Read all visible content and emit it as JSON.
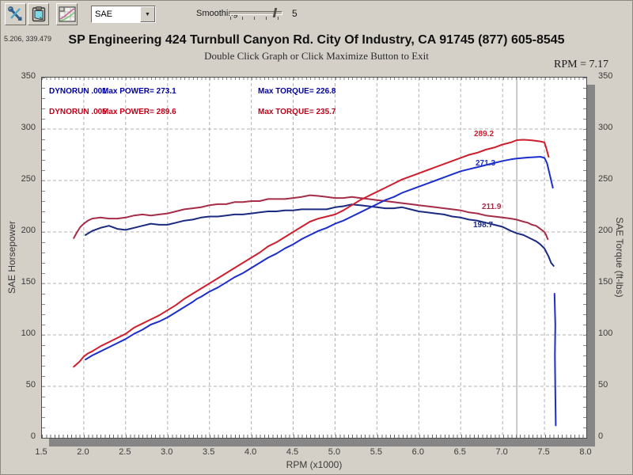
{
  "toolbar": {
    "dropdown_value": "SAE",
    "smoothing_label": "Smoothing",
    "smoothing_value": "5"
  },
  "header": {
    "cursor_coords": "5.206, 339.479",
    "title": "SP Engineering 424 Turnbull Canyon Rd. City Of Industry, CA 91745 (877) 605-8545",
    "subtitle": "Double Click Graph or Click Maximize Button to Exit",
    "rpm_readout": "RPM = 7.17"
  },
  "legend": {
    "rows": [
      {
        "run": "DYNORUN .001",
        "power": "Max POWER= 273.1",
        "torque": "Max TORQUE= 226.8",
        "color": "#0000a0"
      },
      {
        "run": "DYNORUN .005",
        "power": "Max POWER= 289.6",
        "torque": "Max TORQUE= 235.7",
        "color": "#c00018"
      }
    ]
  },
  "axes": {
    "left_title": "SAE Horsepower",
    "right_title": "SAE Torque (ft-lbs)",
    "x_title": "RPM (x1000)"
  },
  "chart_data": {
    "type": "line",
    "title": "SP Engineering 424 Turnbull Canyon Rd. City Of Industry, CA 91745 (877) 605-8545",
    "xlabel": "RPM (x1000)",
    "ylabel_left": "SAE Horsepower",
    "ylabel_right": "SAE Torque (ft-lbs)",
    "x_range": [
      1.5,
      8.0
    ],
    "y_range": [
      0,
      350
    ],
    "x_ticks": [
      "1.5",
      "2.0",
      "2.5",
      "3.0",
      "3.5",
      "4.0",
      "4.5",
      "5.0",
      "5.5",
      "6.0",
      "6.5",
      "7.0",
      "7.5",
      "8.0"
    ],
    "y_ticks": [
      "0",
      "50",
      "100",
      "150",
      "200",
      "250",
      "300",
      "350"
    ],
    "grid": "dashed",
    "legend_position": "top-left-inside",
    "cursor_rpm": 7.17,
    "cursor_labels": [
      {
        "text": "289.2",
        "x": 546,
        "y": 66,
        "color": "#cf1f2e"
      },
      {
        "text": "271.3",
        "x": 548,
        "y": 103,
        "color": "#1c2ecc"
      },
      {
        "text": "211.9",
        "x": 556,
        "y": 158,
        "color": "#a62c48"
      },
      {
        "text": "198.7",
        "x": 545,
        "y": 181,
        "color": "#1a2a80"
      }
    ],
    "series": [
      {
        "name": "dynorun-005-torque",
        "run": "DYNORUN .005",
        "quantity": "torque",
        "max": 235.7,
        "color": "#a62c48",
        "points": [
          [
            1.88,
            194
          ],
          [
            1.92,
            200
          ],
          [
            1.96,
            205
          ],
          [
            2.0,
            208
          ],
          [
            2.05,
            211
          ],
          [
            2.1,
            213
          ],
          [
            2.2,
            214
          ],
          [
            2.3,
            213
          ],
          [
            2.4,
            213
          ],
          [
            2.5,
            214
          ],
          [
            2.6,
            216
          ],
          [
            2.7,
            217
          ],
          [
            2.8,
            216
          ],
          [
            2.9,
            217
          ],
          [
            3.0,
            218
          ],
          [
            3.1,
            220
          ],
          [
            3.2,
            222
          ],
          [
            3.3,
            223
          ],
          [
            3.4,
            224
          ],
          [
            3.5,
            226
          ],
          [
            3.6,
            227
          ],
          [
            3.7,
            227
          ],
          [
            3.8,
            229
          ],
          [
            3.9,
            229
          ],
          [
            4.0,
            230
          ],
          [
            4.1,
            230
          ],
          [
            4.2,
            232
          ],
          [
            4.3,
            232
          ],
          [
            4.4,
            232
          ],
          [
            4.5,
            233
          ],
          [
            4.6,
            234
          ],
          [
            4.7,
            235.7
          ],
          [
            4.8,
            235
          ],
          [
            4.9,
            234
          ],
          [
            5.0,
            233
          ],
          [
            5.1,
            233
          ],
          [
            5.2,
            234
          ],
          [
            5.3,
            233
          ],
          [
            5.4,
            232
          ],
          [
            5.5,
            231
          ],
          [
            5.6,
            230
          ],
          [
            5.7,
            229
          ],
          [
            5.8,
            228
          ],
          [
            5.9,
            227
          ],
          [
            6.0,
            226
          ],
          [
            6.1,
            225
          ],
          [
            6.2,
            224
          ],
          [
            6.3,
            223
          ],
          [
            6.4,
            222
          ],
          [
            6.5,
            221
          ],
          [
            6.6,
            219
          ],
          [
            6.7,
            218
          ],
          [
            6.8,
            216
          ],
          [
            6.9,
            215
          ],
          [
            7.0,
            214
          ],
          [
            7.1,
            213
          ],
          [
            7.17,
            211.9
          ],
          [
            7.25,
            210
          ],
          [
            7.3,
            209
          ],
          [
            7.35,
            207
          ],
          [
            7.4,
            206
          ],
          [
            7.45,
            203
          ],
          [
            7.5,
            200
          ],
          [
            7.52,
            197
          ],
          [
            7.54,
            193
          ]
        ]
      },
      {
        "name": "dynorun-001-torque",
        "run": "DYNORUN .001",
        "quantity": "torque",
        "max": 226.8,
        "color": "#1a2a80",
        "points": [
          [
            2.02,
            197
          ],
          [
            2.1,
            201
          ],
          [
            2.2,
            204
          ],
          [
            2.3,
            206
          ],
          [
            2.4,
            203
          ],
          [
            2.5,
            202
          ],
          [
            2.6,
            204
          ],
          [
            2.7,
            206
          ],
          [
            2.8,
            208
          ],
          [
            2.9,
            207
          ],
          [
            3.0,
            207
          ],
          [
            3.1,
            209
          ],
          [
            3.2,
            211
          ],
          [
            3.3,
            212
          ],
          [
            3.4,
            214
          ],
          [
            3.5,
            215
          ],
          [
            3.6,
            215
          ],
          [
            3.7,
            216
          ],
          [
            3.8,
            217
          ],
          [
            3.9,
            217
          ],
          [
            4.0,
            218
          ],
          [
            4.1,
            219
          ],
          [
            4.2,
            220
          ],
          [
            4.3,
            220
          ],
          [
            4.4,
            221
          ],
          [
            4.5,
            221
          ],
          [
            4.6,
            222
          ],
          [
            4.7,
            222
          ],
          [
            4.8,
            222
          ],
          [
            4.9,
            222
          ],
          [
            5.0,
            224
          ],
          [
            5.1,
            225
          ],
          [
            5.2,
            226.8
          ],
          [
            5.3,
            226
          ],
          [
            5.4,
            225
          ],
          [
            5.5,
            224
          ],
          [
            5.6,
            223
          ],
          [
            5.7,
            223
          ],
          [
            5.8,
            224
          ],
          [
            5.9,
            222
          ],
          [
            6.0,
            220
          ],
          [
            6.1,
            219
          ],
          [
            6.2,
            218
          ],
          [
            6.3,
            217
          ],
          [
            6.4,
            215
          ],
          [
            6.5,
            214
          ],
          [
            6.6,
            212
          ],
          [
            6.7,
            211
          ],
          [
            6.8,
            209
          ],
          [
            6.9,
            207
          ],
          [
            7.0,
            205
          ],
          [
            7.1,
            201
          ],
          [
            7.17,
            198.7
          ],
          [
            7.25,
            197
          ],
          [
            7.3,
            195
          ],
          [
            7.35,
            193
          ],
          [
            7.4,
            191
          ],
          [
            7.45,
            188
          ],
          [
            7.5,
            184
          ],
          [
            7.55,
            176
          ],
          [
            7.58,
            170
          ],
          [
            7.61,
            167
          ]
        ]
      },
      {
        "name": "dynorun-005-power",
        "run": "DYNORUN .005",
        "quantity": "power",
        "max": 289.6,
        "color": "#cf1f2e",
        "points": [
          [
            1.88,
            69
          ],
          [
            1.95,
            74
          ],
          [
            2.0,
            79
          ],
          [
            2.05,
            82
          ],
          [
            2.1,
            84
          ],
          [
            2.2,
            89
          ],
          [
            2.3,
            93
          ],
          [
            2.4,
            97
          ],
          [
            2.5,
            101
          ],
          [
            2.6,
            107
          ],
          [
            2.7,
            111
          ],
          [
            2.8,
            115
          ],
          [
            2.9,
            119
          ],
          [
            3.0,
            124
          ],
          [
            3.1,
            129
          ],
          [
            3.2,
            135
          ],
          [
            3.3,
            140
          ],
          [
            3.4,
            145
          ],
          [
            3.5,
            150
          ],
          [
            3.6,
            155
          ],
          [
            3.7,
            160
          ],
          [
            3.8,
            165
          ],
          [
            3.9,
            170
          ],
          [
            4.0,
            175
          ],
          [
            4.1,
            180
          ],
          [
            4.2,
            186
          ],
          [
            4.3,
            190
          ],
          [
            4.4,
            195
          ],
          [
            4.5,
            200
          ],
          [
            4.6,
            205
          ],
          [
            4.7,
            210
          ],
          [
            4.8,
            213
          ],
          [
            4.9,
            215
          ],
          [
            5.0,
            217
          ],
          [
            5.1,
            221
          ],
          [
            5.2,
            226
          ],
          [
            5.3,
            231
          ],
          [
            5.35,
            233
          ],
          [
            5.4,
            235
          ],
          [
            5.5,
            239
          ],
          [
            5.6,
            243
          ],
          [
            5.7,
            247
          ],
          [
            5.8,
            251
          ],
          [
            5.9,
            254
          ],
          [
            6.0,
            257
          ],
          [
            6.1,
            260
          ],
          [
            6.2,
            263
          ],
          [
            6.3,
            266
          ],
          [
            6.4,
            269
          ],
          [
            6.5,
            272
          ],
          [
            6.6,
            275
          ],
          [
            6.7,
            277
          ],
          [
            6.8,
            280
          ],
          [
            6.9,
            282
          ],
          [
            7.0,
            285
          ],
          [
            7.1,
            287
          ],
          [
            7.17,
            289.2
          ],
          [
            7.25,
            289.6
          ],
          [
            7.35,
            289
          ],
          [
            7.45,
            288
          ],
          [
            7.5,
            287
          ],
          [
            7.52,
            282
          ],
          [
            7.54,
            276
          ],
          [
            7.55,
            273
          ]
        ]
      },
      {
        "name": "dynorun-001-power",
        "run": "DYNORUN .001",
        "quantity": "power",
        "max": 273.1,
        "color": "#1c2ecc",
        "points": [
          [
            2.02,
            76
          ],
          [
            2.1,
            80
          ],
          [
            2.2,
            84
          ],
          [
            2.3,
            88
          ],
          [
            2.4,
            92
          ],
          [
            2.5,
            96
          ],
          [
            2.6,
            101
          ],
          [
            2.7,
            105
          ],
          [
            2.8,
            110
          ],
          [
            2.9,
            113
          ],
          [
            3.0,
            117
          ],
          [
            3.1,
            122
          ],
          [
            3.2,
            127
          ],
          [
            3.3,
            132
          ],
          [
            3.35,
            135
          ],
          [
            3.4,
            137
          ],
          [
            3.5,
            142
          ],
          [
            3.6,
            146
          ],
          [
            3.7,
            151
          ],
          [
            3.8,
            156
          ],
          [
            3.9,
            160
          ],
          [
            4.0,
            165
          ],
          [
            4.1,
            170
          ],
          [
            4.2,
            175
          ],
          [
            4.3,
            179
          ],
          [
            4.4,
            184
          ],
          [
            4.5,
            188
          ],
          [
            4.6,
            193
          ],
          [
            4.7,
            197
          ],
          [
            4.75,
            199
          ],
          [
            4.8,
            201
          ],
          [
            4.9,
            204
          ],
          [
            5.0,
            208
          ],
          [
            5.1,
            211
          ],
          [
            5.2,
            215
          ],
          [
            5.3,
            219
          ],
          [
            5.4,
            223
          ],
          [
            5.5,
            227
          ],
          [
            5.6,
            231
          ],
          [
            5.7,
            234
          ],
          [
            5.8,
            238
          ],
          [
            5.9,
            241
          ],
          [
            6.0,
            244
          ],
          [
            6.1,
            247
          ],
          [
            6.2,
            250
          ],
          [
            6.3,
            253
          ],
          [
            6.4,
            256
          ],
          [
            6.5,
            259
          ],
          [
            6.6,
            261
          ],
          [
            6.7,
            263
          ],
          [
            6.8,
            265
          ],
          [
            6.9,
            267
          ],
          [
            7.0,
            269
          ],
          [
            7.1,
            270.5
          ],
          [
            7.17,
            271.3
          ],
          [
            7.3,
            272.3
          ],
          [
            7.4,
            272.8
          ],
          [
            7.45,
            273.1
          ],
          [
            7.5,
            272
          ],
          [
            7.53,
            267
          ],
          [
            7.56,
            257
          ],
          [
            7.6,
            243
          ]
        ]
      },
      {
        "name": "dynorun-001-tail",
        "run": "DYNORUN .001",
        "quantity": "power-tail",
        "color": "#1c2ecc",
        "points": [
          [
            7.62,
            140
          ],
          [
            7.63,
            110
          ],
          [
            7.625,
            80
          ],
          [
            7.63,
            45
          ],
          [
            7.635,
            12
          ]
        ]
      }
    ]
  }
}
